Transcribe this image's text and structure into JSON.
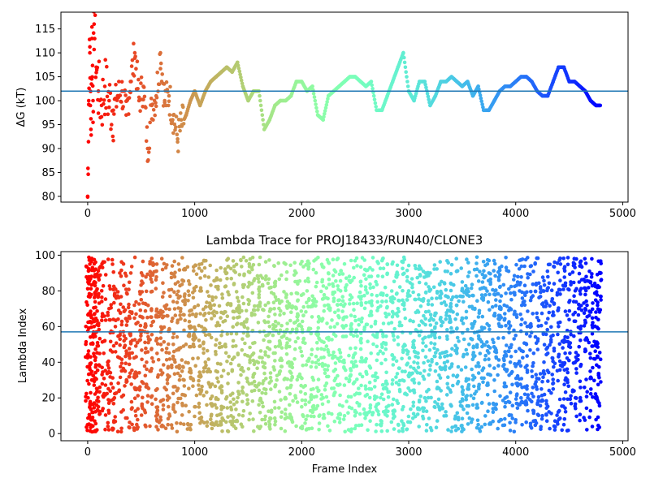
{
  "chart_data": [
    {
      "type": "scatter",
      "title": "",
      "xlabel": "",
      "ylabel": "ΔG (kT)",
      "xlim": [
        -250,
        5050
      ],
      "ylim": [
        78.8,
        118.5
      ],
      "xticks": [
        0,
        1000,
        2000,
        3000,
        4000,
        5000
      ],
      "xtick_labels": [
        "0",
        "1000",
        "2000",
        "3000",
        "4000",
        "5000"
      ],
      "yticks": [
        80,
        85,
        90,
        95,
        100,
        105,
        110,
        115
      ],
      "ytick_labels": [
        "80",
        "85",
        "90",
        "95",
        "100",
        "105",
        "110",
        "115"
      ],
      "hline": 102.0,
      "hline_color": "#1f77b4",
      "colormap": "rainbow (red at start → purple at end)",
      "grid": false,
      "series": [
        {
          "x": [
            0,
            10,
            20,
            30,
            40,
            50,
            60,
            80,
            100,
            130,
            160,
            200,
            240,
            280,
            320,
            360,
            400,
            440,
            480,
            520,
            560,
            600,
            640,
            680,
            720,
            760,
            800,
            840,
            880,
            920,
            960,
            1000,
            1050,
            1100,
            1150,
            1200,
            1250,
            1300,
            1350,
            1400,
            1450,
            1500,
            1550,
            1600,
            1650,
            1700,
            1750,
            1800,
            1850,
            1900,
            1950,
            2000,
            2050,
            2100,
            2150,
            2200,
            2250,
            2300,
            2350,
            2400,
            2450,
            2500,
            2550,
            2600,
            2650,
            2700,
            2750,
            2800,
            2850,
            2900,
            2950,
            3000,
            3050,
            3100,
            3150,
            3200,
            3250,
            3300,
            3350,
            3400,
            3450,
            3500,
            3550,
            3600,
            3650,
            3700,
            3750,
            3800,
            3850,
            3900,
            3950,
            4000,
            4050,
            4100,
            4150,
            4200,
            4250,
            4300,
            4350,
            4400,
            4450,
            4500,
            4550,
            4600,
            4650,
            4700,
            4750,
            4790
          ],
          "y": [
            80,
            100,
            110,
            94,
            113,
            100,
            116,
            107,
            102,
            99,
            103,
            100,
            98,
            101,
            102,
            97,
            104,
            110,
            100,
            103,
            90,
            99,
            101,
            110,
            100,
            101,
            97,
            92,
            95,
            97,
            100,
            102,
            99,
            102,
            104,
            105,
            106,
            107,
            106,
            108,
            103,
            100,
            102,
            102,
            94,
            96,
            99,
            100,
            100,
            101,
            104,
            104,
            102,
            103,
            97,
            96,
            101,
            102,
            103,
            104,
            105,
            105,
            104,
            103,
            104,
            98,
            98,
            101,
            104,
            107,
            110,
            102,
            100,
            104,
            104,
            99,
            101,
            104,
            104,
            105,
            104,
            103,
            104,
            101,
            103,
            98,
            98,
            100,
            102,
            103,
            103,
            104,
            105,
            105,
            104,
            102,
            101,
            101,
            104,
            107,
            107,
            104,
            104,
            103,
            102,
            100,
            99,
            99
          ]
        }
      ]
    },
    {
      "type": "scatter",
      "title": "Lambda Trace for PROJ18433/RUN40/CLONE3",
      "xlabel": "Frame Index",
      "ylabel": "Lambda Index",
      "xlim": [
        -250,
        5050
      ],
      "ylim": [
        -4,
        102
      ],
      "xticks": [
        0,
        1000,
        2000,
        3000,
        4000,
        5000
      ],
      "xtick_labels": [
        "0",
        "1000",
        "2000",
        "3000",
        "4000",
        "5000"
      ],
      "yticks": [
        0,
        20,
        40,
        60,
        80,
        100
      ],
      "ytick_labels": [
        "0",
        "20",
        "40",
        "60",
        "80",
        "100"
      ],
      "hline": 57.0,
      "hline_color": "#1f77b4",
      "colormap": "rainbow (red at start → purple at end)",
      "grid": false,
      "series": [
        {
          "x": [
            0,
            20,
            40,
            60,
            80,
            100,
            150,
            200,
            250,
            300,
            350,
            400,
            450,
            500,
            550,
            600,
            650,
            700,
            750,
            800,
            850,
            900,
            950,
            1000,
            1050,
            1100,
            1150,
            1200,
            1250,
            1300,
            1350,
            1400,
            1450,
            1500,
            1550,
            1600,
            1650,
            1700,
            1750,
            1800,
            1850,
            1900,
            1950,
            2000,
            2050,
            2100,
            2150,
            2200,
            2250,
            2300,
            2350,
            2400,
            2450,
            2500,
            2550,
            2600,
            2650,
            2700,
            2750,
            2800,
            2850,
            2900,
            2950,
            3000,
            3050,
            3100,
            3150,
            3200,
            3250,
            3300,
            3350,
            3400,
            3450,
            3500,
            3550,
            3600,
            3650,
            3700,
            3750,
            3800,
            3850,
            3900,
            3950,
            4000,
            4050,
            4100,
            4150,
            4200,
            4250,
            4300,
            4350,
            4400,
            4450,
            4500,
            4550,
            4600,
            4650,
            4700,
            4750,
            4780
          ],
          "y": [
            5,
            95,
            30,
            60,
            80,
            15,
            45,
            70,
            20,
            90,
            35,
            55,
            10,
            75,
            40,
            85,
            25,
            65,
            5,
            50,
            95,
            30,
            60,
            15,
            80,
            40,
            70,
            20,
            55,
            90,
            35,
            65,
            10,
            75,
            45,
            85,
            25,
            60,
            5,
            50,
            95,
            30,
            70,
            15,
            80,
            40,
            55,
            20,
            90,
            35,
            65,
            10,
            75,
            45,
            85,
            25,
            60,
            5,
            50,
            95,
            30,
            70,
            15,
            80,
            40,
            55,
            20,
            90,
            35,
            65,
            10,
            75,
            45,
            85,
            25,
            60,
            5,
            50,
            90,
            30,
            70,
            15,
            40,
            55,
            20,
            50,
            35,
            65,
            10,
            45,
            25,
            60,
            5,
            50,
            95,
            80,
            70,
            85,
            65,
            17
          ]
        }
      ]
    }
  ]
}
